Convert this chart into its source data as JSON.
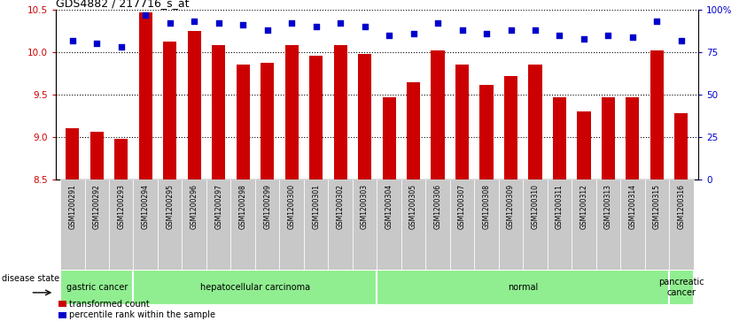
{
  "title": "GDS4882 / 217716_s_at",
  "samples": [
    "GSM1200291",
    "GSM1200292",
    "GSM1200293",
    "GSM1200294",
    "GSM1200295",
    "GSM1200296",
    "GSM1200297",
    "GSM1200298",
    "GSM1200299",
    "GSM1200300",
    "GSM1200301",
    "GSM1200302",
    "GSM1200303",
    "GSM1200304",
    "GSM1200305",
    "GSM1200306",
    "GSM1200307",
    "GSM1200308",
    "GSM1200309",
    "GSM1200310",
    "GSM1200311",
    "GSM1200312",
    "GSM1200313",
    "GSM1200314",
    "GSM1200315",
    "GSM1200316"
  ],
  "transformed_counts": [
    9.11,
    9.06,
    8.98,
    10.47,
    10.12,
    10.25,
    10.08,
    9.85,
    9.88,
    10.08,
    9.96,
    10.08,
    9.98,
    9.47,
    9.65,
    10.02,
    9.85,
    9.62,
    9.72,
    9.85,
    9.47,
    9.3,
    9.47,
    9.47,
    10.02,
    9.28
  ],
  "percentile_ranks": [
    82,
    80,
    78,
    97,
    92,
    93,
    92,
    91,
    88,
    92,
    90,
    92,
    90,
    85,
    86,
    92,
    88,
    86,
    88,
    88,
    85,
    83,
    85,
    84,
    93,
    82
  ],
  "ylim_left": [
    8.5,
    10.5
  ],
  "ylim_right": [
    0,
    100
  ],
  "yticks_left": [
    8.5,
    9.0,
    9.5,
    10.0,
    10.5
  ],
  "yticks_right": [
    0,
    25,
    50,
    75,
    100
  ],
  "bar_color": "#cc0000",
  "dot_color": "#0000cc",
  "tick_bg": "#c8c8c8",
  "disease_groups": [
    {
      "label": "gastric cancer",
      "start": 0,
      "end": 3
    },
    {
      "label": "hepatocellular carcinoma",
      "start": 3,
      "end": 13
    },
    {
      "label": "normal",
      "start": 13,
      "end": 25
    },
    {
      "label": "pancreatic\ncancer",
      "start": 25,
      "end": 26
    }
  ],
  "group_color": "#90ee90",
  "group_border_color": "#ffffff",
  "legend_labels": [
    "transformed count",
    "percentile rank within the sample"
  ],
  "legend_colors": [
    "#cc0000",
    "#0000cc"
  ],
  "disease_state_label": "disease state"
}
